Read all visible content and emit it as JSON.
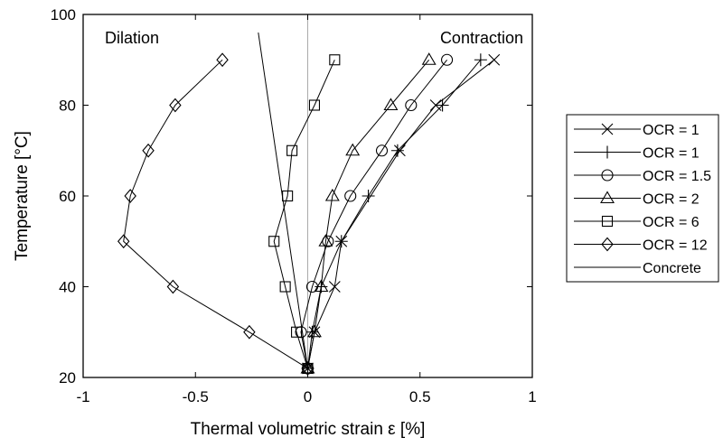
{
  "chart_data": {
    "type": "line",
    "xlabel": "Thermal volumetric strain ε [%]",
    "ylabel": "Temperature [°C]",
    "xlim": [
      -1,
      1
    ],
    "ylim": [
      20,
      100
    ],
    "xticks": [
      -1,
      -0.5,
      0,
      0.5,
      1
    ],
    "xtick_labels": [
      "-1",
      "-0.5",
      "0",
      "0.5",
      "1"
    ],
    "yticks": [
      20,
      40,
      60,
      80,
      100
    ],
    "ytick_labels": [
      "20",
      "40",
      "60",
      "80",
      "100"
    ],
    "grid": false,
    "legend_position": "outside-right",
    "annotations": [
      {
        "text": "Dilation",
        "position": "top-left"
      },
      {
        "text": "Contraction",
        "position": "top-right"
      }
    ],
    "reference_line": {
      "x": 0,
      "color": "#aaaaaa"
    },
    "series": [
      {
        "name": "OCR = 1",
        "marker": "x",
        "x": [
          0,
          0.03,
          0.12,
          0.15,
          0.41,
          0.57,
          0.83
        ],
        "y": [
          22,
          30,
          40,
          50,
          70,
          80,
          90
        ]
      },
      {
        "name": "OCR = 1",
        "marker": "plus",
        "x": [
          0,
          0.02,
          0.06,
          0.15,
          0.27,
          0.4,
          0.6,
          0.77
        ],
        "y": [
          22,
          30,
          40,
          50,
          60,
          70,
          80,
          90
        ]
      },
      {
        "name": "OCR = 1.5",
        "marker": "circle",
        "x": [
          0,
          -0.03,
          0.02,
          0.09,
          0.19,
          0.33,
          0.46,
          0.62
        ],
        "y": [
          22,
          30,
          40,
          50,
          60,
          70,
          80,
          90
        ]
      },
      {
        "name": "OCR = 2",
        "marker": "triangle",
        "x": [
          0,
          0.03,
          0.06,
          0.08,
          0.11,
          0.2,
          0.37,
          0.54
        ],
        "y": [
          22,
          30,
          40,
          50,
          60,
          70,
          80,
          90
        ]
      },
      {
        "name": "OCR = 6",
        "marker": "square",
        "x": [
          0,
          -0.05,
          -0.1,
          -0.15,
          -0.09,
          -0.07,
          0.03,
          0.12
        ],
        "y": [
          22,
          30,
          40,
          50,
          60,
          70,
          80,
          90
        ]
      },
      {
        "name": "OCR = 12",
        "marker": "diamond",
        "x": [
          0,
          -0.26,
          -0.6,
          -0.82,
          -0.79,
          -0.71,
          -0.59,
          -0.38
        ],
        "y": [
          22,
          30,
          40,
          50,
          60,
          70,
          80,
          90
        ]
      },
      {
        "name": "Concrete",
        "marker": "none",
        "x": [
          0,
          -0.22
        ],
        "y": [
          22,
          96
        ]
      }
    ]
  }
}
